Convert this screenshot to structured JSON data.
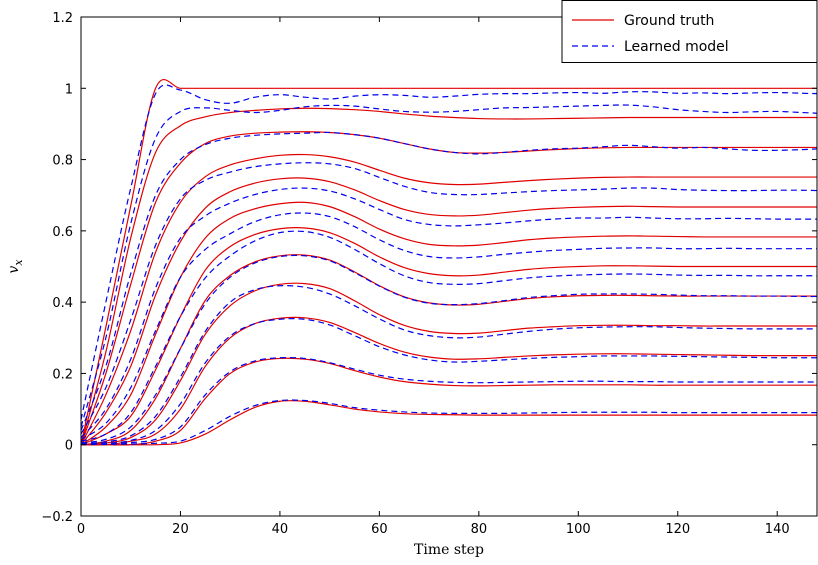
{
  "chart_data": {
    "type": "line",
    "title": "",
    "xlabel": "Time step",
    "ylabel": "v_x",
    "xlim": [
      0,
      148
    ],
    "ylim": [
      -0.2,
      1.2
    ],
    "xticks": [
      0,
      20,
      40,
      60,
      80,
      100,
      120,
      140
    ],
    "yticks": [
      -0.2,
      0,
      0.2,
      0.4,
      0.6,
      0.8,
      1,
      1.2
    ],
    "ytick_labels": [
      "−0.2",
      "0",
      "0.2",
      "0.4",
      "0.6",
      "0.8",
      "1",
      "1.2"
    ],
    "grid": false,
    "legend_position": "top-right",
    "legend": [
      {
        "label": "Ground truth",
        "color": "#e00000",
        "style": "solid"
      },
      {
        "label": "Learned model",
        "color": "#0000ee",
        "style": "dashed"
      }
    ],
    "x": [
      0,
      5,
      10,
      15,
      20,
      25,
      30,
      35,
      40,
      45,
      50,
      55,
      60,
      65,
      70,
      75,
      80,
      85,
      90,
      95,
      100,
      105,
      110,
      115,
      120,
      125,
      130,
      135,
      140,
      145,
      148
    ],
    "series": [
      {
        "group": "ground_truth",
        "values": [
          0.0,
          0.33,
          0.67,
          1.0,
          1.0,
          1.0,
          1.0,
          1.0,
          1.0,
          1.0,
          1.0,
          1.0,
          1.0,
          1.0,
          1.0,
          1.0,
          1.0,
          1.0,
          1.0,
          1.0,
          1.0,
          1.0,
          1.0,
          1.0,
          1.0,
          1.0,
          1.0,
          1.0,
          1.0,
          1.0,
          1.0
        ]
      },
      {
        "group": "ground_truth",
        "values": [
          0.0,
          0.26,
          0.58,
          0.82,
          0.895,
          0.92,
          0.932,
          0.938,
          0.942,
          0.944,
          0.943,
          0.94,
          0.935,
          0.928,
          0.922,
          0.918,
          0.915,
          0.914,
          0.914,
          0.915,
          0.916,
          0.917,
          0.918,
          0.918,
          0.918,
          0.918,
          0.918,
          0.918,
          0.918,
          0.918,
          0.918
        ]
      },
      {
        "group": "ground_truth",
        "values": [
          0.0,
          0.2,
          0.45,
          0.68,
          0.79,
          0.845,
          0.866,
          0.874,
          0.877,
          0.878,
          0.876,
          0.87,
          0.86,
          0.845,
          0.83,
          0.82,
          0.818,
          0.82,
          0.824,
          0.828,
          0.831,
          0.833,
          0.834,
          0.834,
          0.834,
          0.834,
          0.834,
          0.834,
          0.834,
          0.834,
          0.834
        ]
      },
      {
        "group": "ground_truth",
        "values": [
          0.0,
          0.14,
          0.32,
          0.54,
          0.68,
          0.752,
          0.785,
          0.802,
          0.812,
          0.814,
          0.808,
          0.793,
          0.77,
          0.748,
          0.735,
          0.73,
          0.731,
          0.736,
          0.741,
          0.745,
          0.748,
          0.75,
          0.751,
          0.751,
          0.751,
          0.751,
          0.751,
          0.751,
          0.751,
          0.751,
          0.751
        ]
      },
      {
        "group": "ground_truth",
        "values": [
          0.0,
          0.09,
          0.22,
          0.42,
          0.57,
          0.664,
          0.71,
          0.734,
          0.746,
          0.748,
          0.738,
          0.715,
          0.685,
          0.66,
          0.646,
          0.642,
          0.644,
          0.651,
          0.658,
          0.663,
          0.666,
          0.668,
          0.669,
          0.668,
          0.667,
          0.667,
          0.667,
          0.667,
          0.667,
          0.667,
          0.667
        ]
      },
      {
        "group": "ground_truth",
        "values": [
          0.0,
          0.05,
          0.14,
          0.31,
          0.47,
          0.58,
          0.635,
          0.662,
          0.676,
          0.68,
          0.668,
          0.64,
          0.605,
          0.578,
          0.562,
          0.558,
          0.56,
          0.567,
          0.575,
          0.58,
          0.583,
          0.585,
          0.586,
          0.585,
          0.584,
          0.583,
          0.583,
          0.583,
          0.583,
          0.583,
          0.583
        ]
      },
      {
        "group": "ground_truth",
        "values": [
          0.0,
          0.03,
          0.08,
          0.21,
          0.36,
          0.49,
          0.556,
          0.59,
          0.606,
          0.608,
          0.595,
          0.565,
          0.527,
          0.497,
          0.48,
          0.474,
          0.476,
          0.484,
          0.492,
          0.497,
          0.5,
          0.502,
          0.502,
          0.501,
          0.5,
          0.5,
          0.5,
          0.5,
          0.5,
          0.5,
          0.5
        ]
      },
      {
        "group": "ground_truth",
        "values": [
          0.0,
          0.01,
          0.04,
          0.13,
          0.27,
          0.405,
          0.475,
          0.513,
          0.53,
          0.532,
          0.518,
          0.485,
          0.446,
          0.415,
          0.398,
          0.392,
          0.394,
          0.402,
          0.41,
          0.415,
          0.418,
          0.419,
          0.419,
          0.418,
          0.417,
          0.417,
          0.417,
          0.417,
          0.417,
          0.417,
          0.417
        ]
      },
      {
        "group": "ground_truth",
        "values": [
          0.0,
          0.005,
          0.02,
          0.07,
          0.18,
          0.31,
          0.39,
          0.432,
          0.45,
          0.452,
          0.438,
          0.404,
          0.365,
          0.335,
          0.318,
          0.312,
          0.313,
          0.32,
          0.327,
          0.331,
          0.334,
          0.335,
          0.335,
          0.334,
          0.334,
          0.333,
          0.333,
          0.333,
          0.333,
          0.333,
          0.333
        ]
      },
      {
        "group": "ground_truth",
        "values": [
          0.0,
          0.0,
          0.01,
          0.03,
          0.1,
          0.22,
          0.3,
          0.34,
          0.355,
          0.356,
          0.343,
          0.315,
          0.284,
          0.26,
          0.246,
          0.24,
          0.241,
          0.245,
          0.249,
          0.252,
          0.254,
          0.255,
          0.255,
          0.254,
          0.253,
          0.252,
          0.251,
          0.25,
          0.25,
          0.25,
          0.25
        ]
      },
      {
        "group": "ground_truth",
        "values": [
          0.0,
          0.0,
          0.0,
          0.01,
          0.04,
          0.13,
          0.2,
          0.232,
          0.242,
          0.24,
          0.228,
          0.208,
          0.19,
          0.177,
          0.17,
          0.166,
          0.165,
          0.166,
          0.167,
          0.168,
          0.168,
          0.168,
          0.168,
          0.167,
          0.167,
          0.167,
          0.167,
          0.167,
          0.167,
          0.167,
          0.167
        ]
      },
      {
        "group": "ground_truth",
        "values": [
          0.0,
          0.0,
          0.0,
          0.0,
          0.005,
          0.03,
          0.07,
          0.105,
          0.122,
          0.122,
          0.112,
          0.1,
          0.092,
          0.087,
          0.085,
          0.084,
          0.083,
          0.083,
          0.083,
          0.083,
          0.083,
          0.083,
          0.083,
          0.083,
          0.083,
          0.083,
          0.083,
          0.083,
          0.083,
          0.083,
          0.083
        ]
      },
      {
        "group": "learned_model",
        "values": [
          0.07,
          0.4,
          0.72,
          0.985,
          0.995,
          0.968,
          0.958,
          0.975,
          0.982,
          0.975,
          0.97,
          0.978,
          0.982,
          0.98,
          0.975,
          0.978,
          0.983,
          0.985,
          0.985,
          0.987,
          0.988,
          0.986,
          0.99,
          0.99,
          0.986,
          0.987,
          0.985,
          0.987,
          0.988,
          0.986,
          0.985
        ]
      },
      {
        "group": "learned_model",
        "values": [
          0.05,
          0.3,
          0.62,
          0.86,
          0.935,
          0.945,
          0.938,
          0.932,
          0.938,
          0.948,
          0.952,
          0.95,
          0.942,
          0.935,
          0.933,
          0.935,
          0.94,
          0.945,
          0.946,
          0.948,
          0.95,
          0.952,
          0.953,
          0.948,
          0.94,
          0.935,
          0.932,
          0.934,
          0.935,
          0.932,
          0.93
        ]
      },
      {
        "group": "learned_model",
        "values": [
          0.04,
          0.22,
          0.48,
          0.7,
          0.8,
          0.842,
          0.86,
          0.868,
          0.872,
          0.874,
          0.876,
          0.87,
          0.86,
          0.845,
          0.83,
          0.82,
          0.816,
          0.82,
          0.826,
          0.83,
          0.832,
          0.836,
          0.84,
          0.836,
          0.832,
          0.834,
          0.83,
          0.826,
          0.826,
          0.828,
          0.83
        ]
      },
      {
        "group": "learned_model",
        "values": [
          0.03,
          0.16,
          0.35,
          0.56,
          0.69,
          0.742,
          0.765,
          0.78,
          0.788,
          0.791,
          0.788,
          0.775,
          0.75,
          0.725,
          0.708,
          0.702,
          0.702,
          0.706,
          0.71,
          0.713,
          0.715,
          0.717,
          0.72,
          0.72,
          0.716,
          0.714,
          0.713,
          0.713,
          0.714,
          0.714,
          0.713
        ]
      },
      {
        "group": "learned_model",
        "values": [
          0.02,
          0.1,
          0.24,
          0.44,
          0.58,
          0.642,
          0.678,
          0.702,
          0.716,
          0.72,
          0.712,
          0.69,
          0.66,
          0.632,
          0.618,
          0.614,
          0.617,
          0.622,
          0.628,
          0.633,
          0.636,
          0.636,
          0.638,
          0.636,
          0.634,
          0.634,
          0.635,
          0.634,
          0.633,
          0.633,
          0.633
        ]
      },
      {
        "group": "learned_model",
        "values": [
          0.015,
          0.06,
          0.16,
          0.32,
          0.47,
          0.548,
          0.592,
          0.626,
          0.645,
          0.65,
          0.64,
          0.612,
          0.575,
          0.545,
          0.528,
          0.524,
          0.527,
          0.534,
          0.54,
          0.545,
          0.548,
          0.551,
          0.552,
          0.552,
          0.55,
          0.55,
          0.551,
          0.55,
          0.55,
          0.55,
          0.55
        ]
      },
      {
        "group": "learned_model",
        "values": [
          0.01,
          0.03,
          0.09,
          0.22,
          0.36,
          0.468,
          0.53,
          0.572,
          0.595,
          0.598,
          0.582,
          0.548,
          0.508,
          0.474,
          0.455,
          0.45,
          0.452,
          0.46,
          0.468,
          0.473,
          0.476,
          0.478,
          0.479,
          0.478,
          0.476,
          0.475,
          0.475,
          0.474,
          0.474,
          0.474,
          0.474
        ]
      },
      {
        "group": "learned_model",
        "values": [
          0.005,
          0.015,
          0.05,
          0.14,
          0.27,
          0.396,
          0.47,
          0.51,
          0.528,
          0.53,
          0.516,
          0.483,
          0.445,
          0.414,
          0.397,
          0.393,
          0.396,
          0.404,
          0.413,
          0.418,
          0.422,
          0.423,
          0.423,
          0.422,
          0.42,
          0.418,
          0.418,
          0.417,
          0.417,
          0.416,
          0.416
        ]
      },
      {
        "group": "learned_model",
        "values": [
          0.004,
          0.008,
          0.025,
          0.08,
          0.19,
          0.318,
          0.4,
          0.435,
          0.446,
          0.442,
          0.423,
          0.39,
          0.353,
          0.322,
          0.306,
          0.3,
          0.302,
          0.31,
          0.318,
          0.324,
          0.328,
          0.33,
          0.331,
          0.331,
          0.329,
          0.327,
          0.326,
          0.325,
          0.325,
          0.325,
          0.325
        ]
      },
      {
        "group": "learned_model",
        "values": [
          0.003,
          0.004,
          0.012,
          0.04,
          0.115,
          0.23,
          0.305,
          0.34,
          0.352,
          0.352,
          0.336,
          0.306,
          0.275,
          0.252,
          0.238,
          0.232,
          0.234,
          0.238,
          0.242,
          0.245,
          0.247,
          0.249,
          0.249,
          0.249,
          0.248,
          0.247,
          0.246,
          0.245,
          0.244,
          0.244,
          0.244
        ]
      },
      {
        "group": "learned_model",
        "values": [
          0.002,
          0.002,
          0.006,
          0.015,
          0.05,
          0.14,
          0.205,
          0.235,
          0.244,
          0.242,
          0.23,
          0.212,
          0.195,
          0.184,
          0.178,
          0.175,
          0.174,
          0.175,
          0.176,
          0.177,
          0.178,
          0.178,
          0.177,
          0.177,
          0.176,
          0.176,
          0.176,
          0.176,
          0.176,
          0.176,
          0.176
        ]
      },
      {
        "group": "learned_model",
        "values": [
          0.001,
          0.001,
          0.002,
          0.004,
          0.01,
          0.04,
          0.08,
          0.11,
          0.124,
          0.124,
          0.116,
          0.104,
          0.097,
          0.092,
          0.089,
          0.088,
          0.088,
          0.088,
          0.089,
          0.09,
          0.091,
          0.091,
          0.091,
          0.091,
          0.09,
          0.09,
          0.09,
          0.09,
          0.09,
          0.09,
          0.09
        ]
      }
    ]
  }
}
